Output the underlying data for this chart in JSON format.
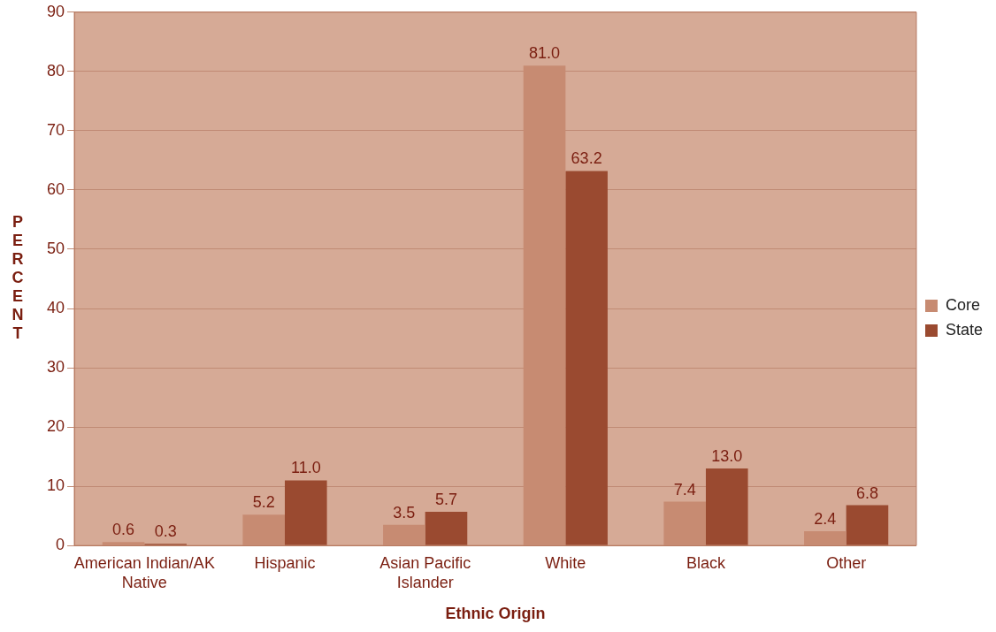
{
  "chart_data": {
    "type": "bar",
    "xlabel": "Ethnic Origin",
    "ylabel": "PERCENT",
    "categories": [
      "American Indian/AK Native",
      "Hispanic",
      "Asian Pacific Islander",
      "White",
      "Black",
      "Other"
    ],
    "series": [
      {
        "name": "Core",
        "color": "#c78b72",
        "values": [
          0.6,
          5.2,
          3.5,
          81.0,
          7.4,
          2.4
        ],
        "value_labels": [
          "0.6",
          "5.2",
          "3.5",
          "81.0",
          "7.4",
          "2.4"
        ]
      },
      {
        "name": "State",
        "color": "#9a4a30",
        "values": [
          0.3,
          11.0,
          5.7,
          63.2,
          13.0,
          6.8
        ],
        "value_labels": [
          "0.3",
          "11.0",
          "5.7",
          "63.2",
          "13.0",
          "6.8"
        ]
      }
    ],
    "ylim": [
      0,
      90
    ],
    "yticks": [
      0,
      10,
      20,
      30,
      40,
      50,
      60,
      70,
      80,
      90
    ],
    "grid": "y",
    "legend": "right"
  }
}
